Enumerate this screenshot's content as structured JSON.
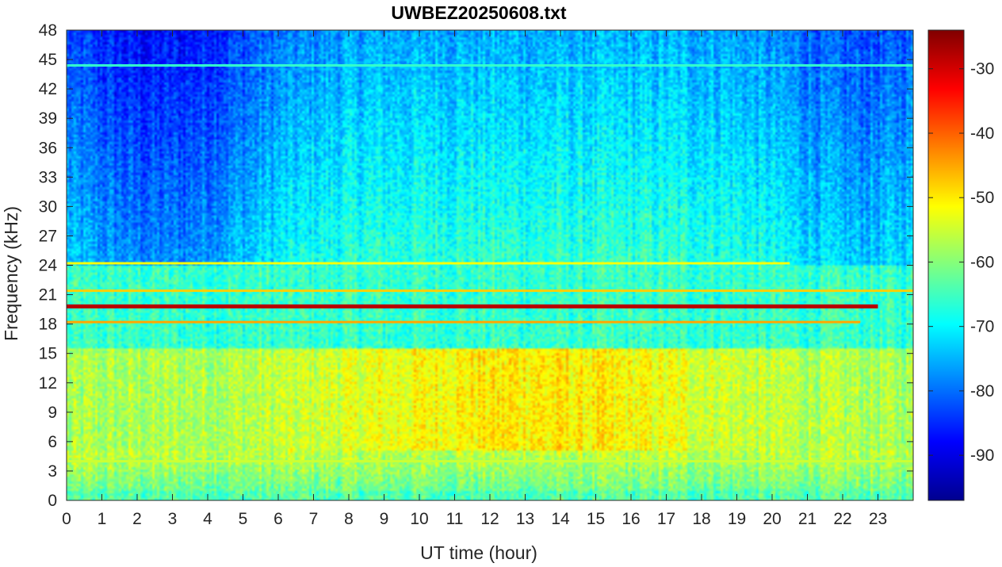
{
  "chart_data": {
    "type": "heatmap",
    "title": "UWBEZ20250608.txt",
    "xlabel": "UT time (hour)",
    "ylabel": "Frequency (kHz)",
    "xlim": [
      0,
      24
    ],
    "ylim": [
      0,
      48
    ],
    "x_ticks": [
      "0",
      "1",
      "2",
      "3",
      "4",
      "5",
      "6",
      "7",
      "8",
      "9",
      "10",
      "11",
      "12",
      "13",
      "14",
      "15",
      "16",
      "17",
      "18",
      "19",
      "20",
      "21",
      "22",
      "23"
    ],
    "y_ticks": [
      "0",
      "3",
      "6",
      "9",
      "12",
      "15",
      "18",
      "21",
      "24",
      "27",
      "30",
      "33",
      "36",
      "39",
      "42",
      "45",
      "48"
    ],
    "colorbar": {
      "colormap": "jet",
      "clim": [
        -97,
        -24
      ],
      "ticks": [
        "-90",
        "-80",
        "-70",
        "-60",
        "-50",
        "-40",
        "-30"
      ]
    },
    "features": [
      {
        "label": "strong narrowband transmitter",
        "freq_khz": 19.8,
        "t_start": 0,
        "t_end": 23.0,
        "level_db": -28
      },
      {
        "label": "narrowband line",
        "freq_khz": 18.2,
        "t_start": 0,
        "t_end": 22.5,
        "level_db": -45
      },
      {
        "label": "narrowband line",
        "freq_khz": 21.4,
        "t_start": 0,
        "t_end": 24,
        "level_db": -48
      },
      {
        "label": "narrowband line",
        "freq_khz": 24.2,
        "t_start": 0,
        "t_end": 20.5,
        "level_db": -52
      },
      {
        "label": "narrowband line",
        "freq_khz": 44.4,
        "t_start": 0,
        "t_end": 24,
        "level_db": -66
      },
      {
        "label": "low-frequency line",
        "freq_khz": 4.0,
        "t_start": 0,
        "t_end": 24,
        "level_db": -55
      },
      {
        "label": "broadband band",
        "freq_low_khz": 5,
        "freq_high_khz": 15,
        "level_db": -52
      }
    ]
  }
}
